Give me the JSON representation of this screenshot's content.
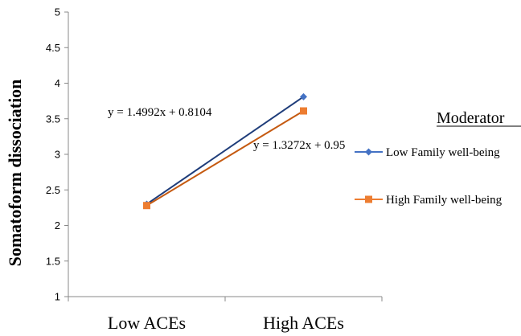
{
  "chart_data": {
    "type": "line",
    "categories": [
      "Low ACEs",
      "High ACEs"
    ],
    "ylabel": "Somatoform dissociation",
    "xlabel": "",
    "ylim": [
      1,
      5
    ],
    "yticks": [
      "1",
      "1.5",
      "2",
      "2.5",
      "3",
      "3.5",
      "4",
      "4.5",
      "5"
    ],
    "grid": false,
    "legend_title": "Moderator",
    "legend_position": "right",
    "series": [
      {
        "name": "Low Family well-being",
        "values": [
          2.3,
          3.81
        ],
        "color": "#1F3D7A",
        "marker_color": "#4472C4",
        "marker": "diamond",
        "equation": "y = 1.4992x + 0.8104"
      },
      {
        "name": "High Family well-being",
        "values": [
          2.28,
          3.61
        ],
        "color": "#C55A11",
        "marker_color": "#ED7D31",
        "marker": "square",
        "equation": "y = 1.3272x + 0.95"
      }
    ]
  }
}
